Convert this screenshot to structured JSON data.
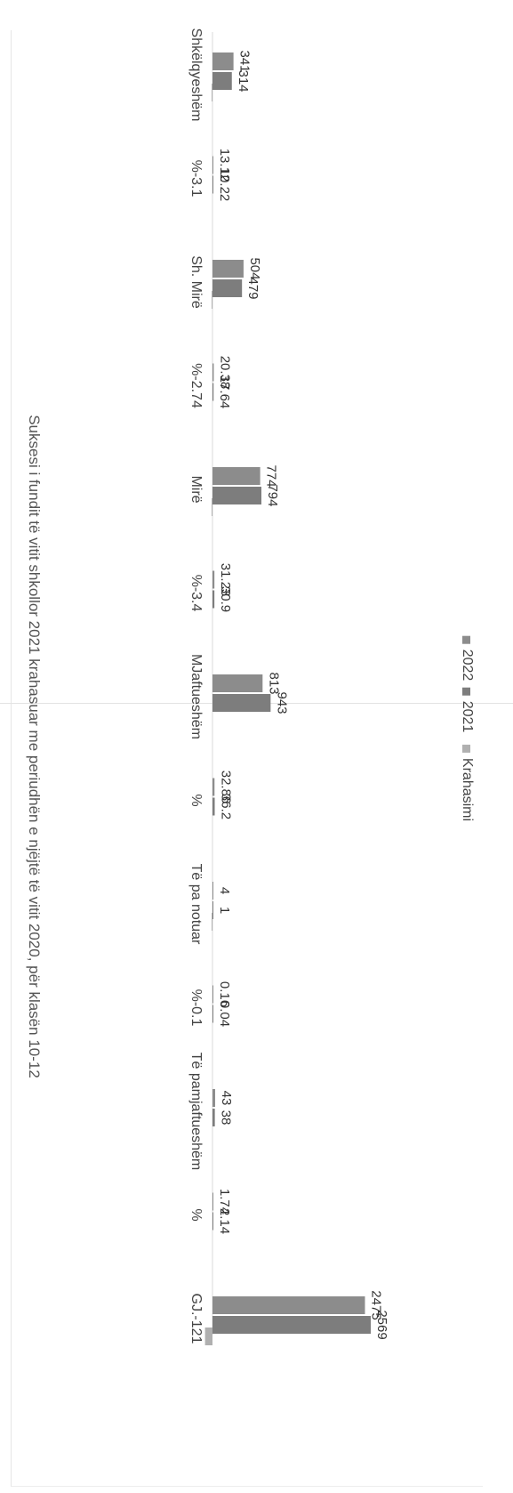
{
  "chart_data": {
    "type": "bar",
    "orientation": "horizontal",
    "rotated": "90deg clockwise (page printed sideways)",
    "title": "Suksesi i fundit të vitit shkollor 2021 krahasuar me periudhën e njëjtë të vitit 2020, për klasën 10-12",
    "categories": [
      "Shkëlqyeshëm",
      "%",
      "Sh. Mirë",
      "%",
      "Mirë",
      "%",
      "MJaftueshëm",
      "%",
      "Të pa notuar",
      "%",
      "Të pamjaftueshëm",
      "%",
      "GJ."
    ],
    "category_labels_display": [
      "Shkëlqyeshëm",
      "%-3.1",
      "Sh. Mirë",
      "%-2.74",
      "Mirë",
      "%-3.4",
      "MJaftueshëm",
      "%",
      "Të pa notuar",
      "%-0.1",
      "Të pamjaftueshëm",
      "%",
      "GJ.-121"
    ],
    "series": [
      {
        "name": "2022",
        "color": "#8c8c8c",
        "values": [
          341,
          13.12,
          504,
          20.38,
          774,
          31.23,
          813,
          32.86,
          4,
          0.16,
          43,
          1.74,
          2475
        ],
        "labels": [
          "341",
          "13.12",
          "504",
          "20.38",
          "774",
          "31.23",
          "813",
          "32.86",
          "4",
          "0.16",
          "43",
          "1.74",
          "2475"
        ]
      },
      {
        "name": "2021",
        "color": "#7d7d7d",
        "values": [
          314,
          10.22,
          479,
          17.64,
          794,
          30.9,
          943,
          36.2,
          1,
          0.04,
          38,
          2.14,
          2569
        ],
        "labels": [
          "314",
          "10.22",
          "479",
          "17.64",
          "794",
          "30.9",
          "943",
          "36.2",
          "1",
          "0.04",
          "38",
          "2.14",
          "2569"
        ]
      },
      {
        "name": "Krahasimi",
        "color": "#b0b0b0",
        "values": [
          -3.1,
          null,
          -2.74,
          null,
          -3.4,
          null,
          null,
          null,
          -0.1,
          null,
          null,
          null,
          -121
        ],
        "labels": [
          "",
          "",
          "",
          "",
          "",
          "",
          "",
          "",
          "",
          "",
          "",
          "",
          ""
        ]
      }
    ],
    "xlim": [
      -200,
      2600
    ],
    "grid": false,
    "legend_position": "right"
  }
}
